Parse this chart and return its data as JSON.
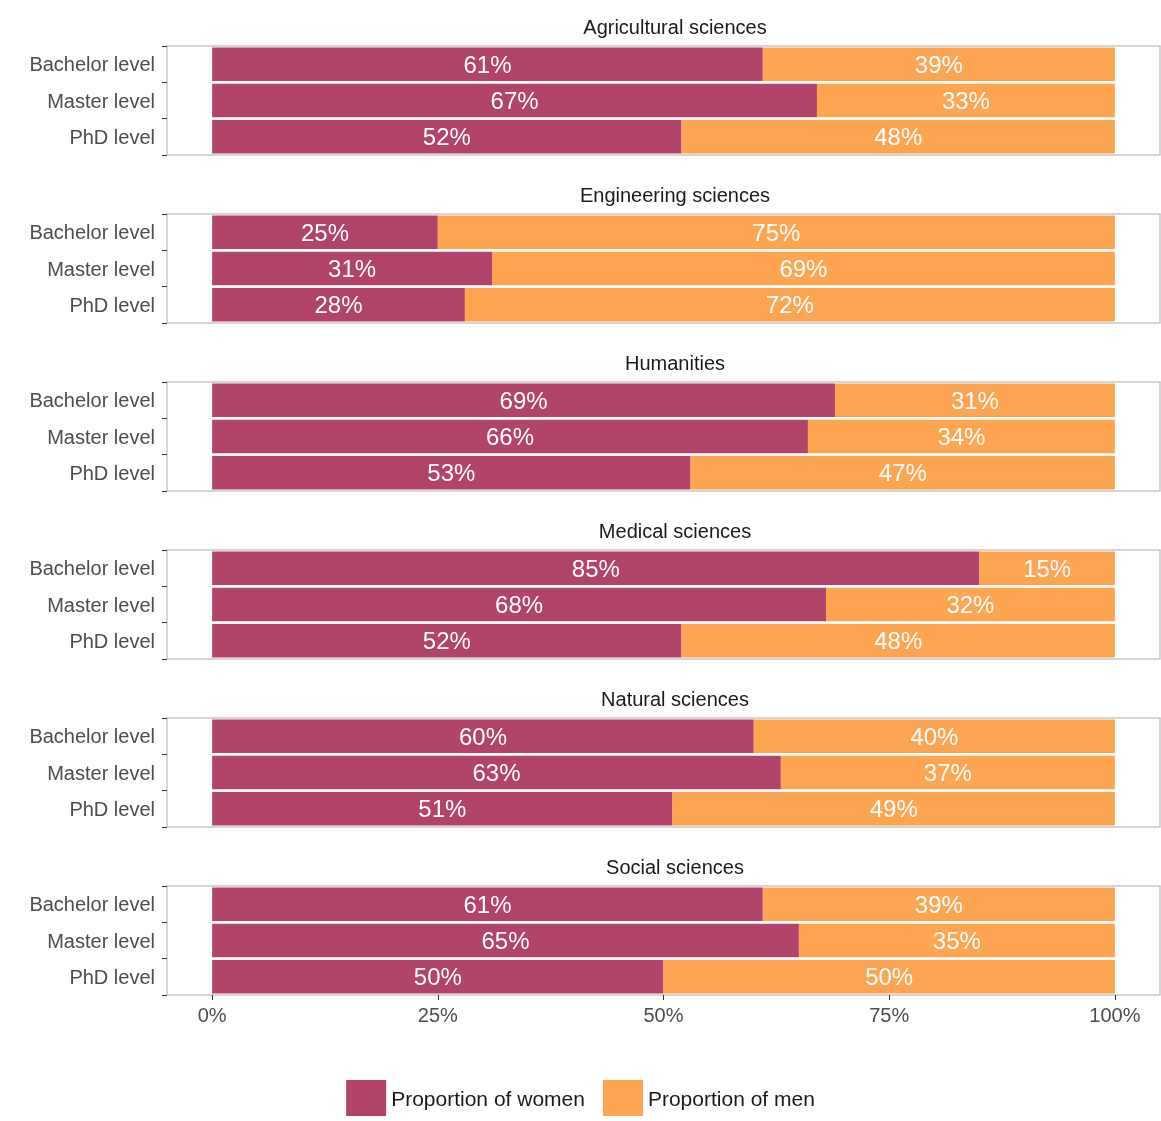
{
  "chart_data": [
    {
      "type": "bar",
      "orientation": "horizontal",
      "stacked": true,
      "title": "Agricultural sciences",
      "categories": [
        "Bachelor level",
        "Master level",
        "PhD level"
      ],
      "xlim": [
        -5,
        105
      ],
      "tick_labels": "y",
      "series": [
        {
          "color": "#b2436a",
          "values": [
            61,
            67,
            52
          ],
          "value_labels": [
            "61%",
            "67%",
            "52%"
          ]
        },
        {
          "color": "#fea552",
          "values": [
            39,
            33,
            48
          ],
          "value_labels": [
            "39%",
            "33%",
            "48%"
          ]
        }
      ]
    },
    {
      "type": "bar",
      "orientation": "horizontal",
      "stacked": true,
      "title": "Engineering sciences",
      "categories": [
        "Bachelor level",
        "Master level",
        "PhD level"
      ],
      "xlim": [
        -5,
        105
      ],
      "tick_labels": "y",
      "series": [
        {
          "color": "#b2436a",
          "values": [
            25,
            31,
            28
          ],
          "value_labels": [
            "25%",
            "31%",
            "28%"
          ]
        },
        {
          "color": "#fea552",
          "values": [
            75,
            69,
            72
          ],
          "value_labels": [
            "75%",
            "69%",
            "72%"
          ]
        }
      ]
    },
    {
      "type": "bar",
      "orientation": "horizontal",
      "stacked": true,
      "title": "Humanities",
      "categories": [
        "Bachelor level",
        "Master level",
        "PhD level"
      ],
      "xlim": [
        -5,
        105
      ],
      "tick_labels": "y",
      "series": [
        {
          "color": "#b2436a",
          "values": [
            69,
            66,
            53
          ],
          "value_labels": [
            "69%",
            "66%",
            "53%"
          ]
        },
        {
          "color": "#fea552",
          "values": [
            31,
            34,
            47
          ],
          "value_labels": [
            "31%",
            "34%",
            "47%"
          ]
        }
      ]
    },
    {
      "type": "bar",
      "orientation": "horizontal",
      "stacked": true,
      "title": "Medical sciences",
      "categories": [
        "Bachelor level",
        "Master level",
        "PhD level"
      ],
      "xlim": [
        -5,
        105
      ],
      "tick_labels": "y",
      "series": [
        {
          "color": "#b2436a",
          "values": [
            85,
            68,
            52
          ],
          "value_labels": [
            "85%",
            "68%",
            "52%"
          ]
        },
        {
          "color": "#fea552",
          "values": [
            15,
            32,
            48
          ],
          "value_labels": [
            "15%",
            "32%",
            "48%"
          ]
        }
      ]
    },
    {
      "type": "bar",
      "orientation": "horizontal",
      "stacked": true,
      "title": "Natural sciences",
      "categories": [
        "Bachelor level",
        "Master level",
        "PhD level"
      ],
      "xlim": [
        -5,
        105
      ],
      "tick_labels": "y",
      "series": [
        {
          "color": "#b2436a",
          "values": [
            60,
            63,
            51
          ],
          "value_labels": [
            "60%",
            "63%",
            "51%"
          ]
        },
        {
          "color": "#fea552",
          "values": [
            40,
            37,
            49
          ],
          "value_labels": [
            "40%",
            "37%",
            "49%"
          ]
        }
      ]
    },
    {
      "type": "bar",
      "orientation": "horizontal",
      "stacked": true,
      "title": "Social sciences",
      "categories": [
        "Bachelor level",
        "Master level",
        "PhD level"
      ],
      "xlim": [
        -5,
        105
      ],
      "xticks": [
        {
          "value": 0,
          "label": "0%"
        },
        {
          "value": 25,
          "label": "25%"
        },
        {
          "value": 50,
          "label": "50%"
        },
        {
          "value": 75,
          "label": "75%"
        },
        {
          "value": 100,
          "label": "100%"
        }
      ],
      "legend": "bottom",
      "series": [
        {
          "name": "Proportion of women",
          "color": "#b2436a",
          "values": [
            61,
            65,
            50
          ],
          "value_labels": [
            "61%",
            "65%",
            "50%"
          ]
        },
        {
          "name": "Proportion of men",
          "color": "#fea552",
          "values": [
            39,
            35,
            50
          ],
          "value_labels": [
            "39%",
            "35%",
            "50%"
          ]
        }
      ]
    }
  ]
}
